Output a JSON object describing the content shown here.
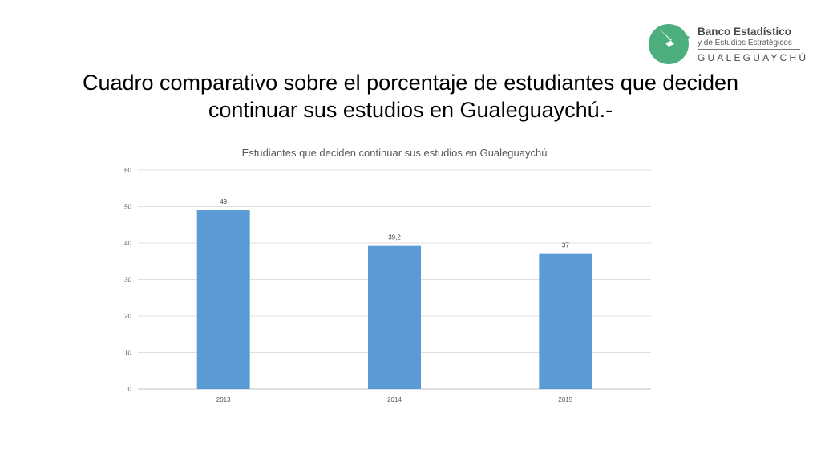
{
  "logo": {
    "line1": "Banco Estadístico",
    "line2": "y de Estudios Estratégicos",
    "line3": "GUALEGUAYCHÚ",
    "color": "#4caf7d"
  },
  "slide": {
    "title_line1": "Cuadro comparativo sobre el porcentaje de estudiantes que deciden",
    "title_line2": "continuar sus estudios en Gualeguaychú.-"
  },
  "chart_data": {
    "type": "bar",
    "title": "Estudiantes que deciden continuar sus estudios en Gualeguaychú",
    "categories": [
      "2013",
      "2014",
      "2015"
    ],
    "values": [
      49,
      39.2,
      37
    ],
    "data_labels": [
      "49",
      "39,2",
      "37"
    ],
    "ylim": [
      0,
      60
    ],
    "yticks": [
      0,
      10,
      20,
      30,
      40,
      50,
      60
    ],
    "grid": true,
    "bar_color": "#5b9bd5",
    "xlabel": "",
    "ylabel": ""
  }
}
